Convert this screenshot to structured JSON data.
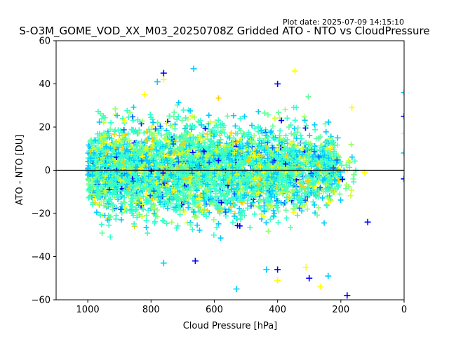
{
  "chart_data": {
    "type": "scatter",
    "title": "S-O3M_GOME_VOD_XX_M03_20250708Z Gridded ATO - NTO vs CloudPressure",
    "plot_date": "Plot date: 2025-07-09 14:15:10",
    "xlabel": "Cloud Pressure [hPa]",
    "ylabel": "ATO - NTO [DU]",
    "xlim": [
      1100,
      0
    ],
    "ylim": [
      -60,
      60
    ],
    "x_ticks": [
      1000,
      800,
      600,
      400,
      200,
      0
    ],
    "y_ticks": [
      -60,
      -40,
      -20,
      0,
      20,
      40,
      60
    ],
    "x_tick_labels": [
      "1000",
      "800",
      "600",
      "400",
      "200",
      "0"
    ],
    "y_tick_labels": [
      "−60",
      "−40",
      "−20",
      "0",
      "20",
      "40",
      "60"
    ],
    "reference_line_y": 0,
    "marker": "plus",
    "colors": [
      "#0000ff",
      "#0066ff",
      "#00ccff",
      "#33ffcc",
      "#66ff99",
      "#99ff66",
      "#ccff33",
      "#ffff00",
      "#ffcc00"
    ],
    "grid": false,
    "point_cloud": {
      "x_range": [
        1000,
        200
      ],
      "center_y": 0,
      "spread_sd": 10
    },
    "outliers": [
      {
        "x": 665,
        "y": 47
      },
      {
        "x": 760,
        "y": 45
      },
      {
        "x": 760,
        "y": 42
      },
      {
        "x": 530,
        "y": -55
      },
      {
        "x": 180,
        "y": -58
      },
      {
        "x": 400,
        "y": -51
      },
      {
        "x": 435,
        "y": -46
      },
      {
        "x": 400,
        "y": -46
      },
      {
        "x": 265,
        "y": -54
      },
      {
        "x": 760,
        "y": -43
      },
      {
        "x": 660,
        "y": -42
      },
      {
        "x": 310,
        "y": -45
      },
      {
        "x": 240,
        "y": -49
      },
      {
        "x": 115,
        "y": -24
      },
      {
        "x": 165,
        "y": 29
      },
      {
        "x": 0,
        "y": 36
      },
      {
        "x": 0,
        "y": 25
      },
      {
        "x": 0,
        "y": 17
      },
      {
        "x": 0,
        "y": 8
      },
      {
        "x": 0,
        "y": -4
      },
      {
        "x": 125,
        "y": -1
      },
      {
        "x": 210,
        "y": 15
      },
      {
        "x": 300,
        "y": -50
      },
      {
        "x": 820,
        "y": 35
      },
      {
        "x": 780,
        "y": 41
      },
      {
        "x": 400,
        "y": 40
      },
      {
        "x": 345,
        "y": 46
      }
    ]
  }
}
